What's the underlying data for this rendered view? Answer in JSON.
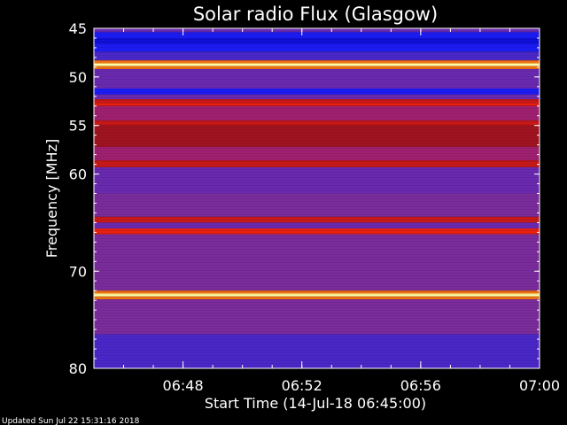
{
  "chart_data": {
    "type": "heatmap",
    "title": "Solar radio Flux (Glasgow)",
    "ylabel": "Frequency [MHz]",
    "xlabel": "Start Time (14-Jul-18 06:45:00)",
    "footer": "Updated Sun Jul 22 15:31:16 2018",
    "y_axis": {
      "range_mhz": [
        45,
        80
      ],
      "inverted": true,
      "ticks": [
        {
          "value": 45,
          "label": "45"
        },
        {
          "value": 50,
          "label": "50"
        },
        {
          "value": 55,
          "label": "55"
        },
        {
          "value": 60,
          "label": "60"
        },
        {
          "value": 70,
          "label": "70"
        },
        {
          "value": 80,
          "label": "80"
        }
      ]
    },
    "x_axis": {
      "range": [
        "06:45:00",
        "07:00:00"
      ],
      "ticks": [
        {
          "value": "06:48",
          "label": "06:48"
        },
        {
          "value": "06:52",
          "label": "06:52"
        },
        {
          "value": "06:56",
          "label": "06:56"
        },
        {
          "value": "07:00",
          "label": "07:00"
        }
      ]
    },
    "colors": {
      "background": "#000000",
      "axis": "#ffffff",
      "low": "#1a1aff",
      "mid": "#7a2aa0",
      "high": "#d81010",
      "peak": "#ffffa0"
    },
    "bands": [
      {
        "from": 45.0,
        "to": 45.4,
        "level": "purple"
      },
      {
        "from": 45.4,
        "to": 46.0,
        "level": "blue"
      },
      {
        "from": 46.0,
        "to": 46.6,
        "level": "blue-dark"
      },
      {
        "from": 46.6,
        "to": 47.4,
        "level": "blue"
      },
      {
        "from": 47.4,
        "to": 48.3,
        "level": "blue-violet"
      },
      {
        "from": 48.3,
        "to": 48.6,
        "level": "orange"
      },
      {
        "from": 48.6,
        "to": 48.9,
        "level": "peak"
      },
      {
        "from": 48.9,
        "to": 49.2,
        "level": "orange"
      },
      {
        "from": 49.2,
        "to": 51.2,
        "level": "purple"
      },
      {
        "from": 51.2,
        "to": 51.8,
        "level": "blue"
      },
      {
        "from": 51.8,
        "to": 52.3,
        "level": "purple"
      },
      {
        "from": 52.3,
        "to": 52.7,
        "level": "red"
      },
      {
        "from": 52.7,
        "to": 53.0,
        "level": "bright-red"
      },
      {
        "from": 53.0,
        "to": 54.5,
        "level": "red-purple"
      },
      {
        "from": 54.5,
        "to": 55.0,
        "level": "red"
      },
      {
        "from": 55.0,
        "to": 57.2,
        "level": "dark-red"
      },
      {
        "from": 57.2,
        "to": 58.6,
        "level": "red-purple"
      },
      {
        "from": 58.6,
        "to": 59.3,
        "level": "red"
      },
      {
        "from": 59.3,
        "to": 62.0,
        "level": "purple"
      },
      {
        "from": 62.0,
        "to": 64.4,
        "level": "violet"
      },
      {
        "from": 64.4,
        "to": 65.0,
        "level": "red"
      },
      {
        "from": 65.0,
        "to": 65.6,
        "level": "purple"
      },
      {
        "from": 65.6,
        "to": 66.2,
        "level": "bright-red"
      },
      {
        "from": 66.2,
        "to": 72.0,
        "level": "violet"
      },
      {
        "from": 72.0,
        "to": 72.3,
        "level": "orange"
      },
      {
        "from": 72.3,
        "to": 72.6,
        "level": "peak"
      },
      {
        "from": 72.6,
        "to": 72.9,
        "level": "orange"
      },
      {
        "from": 72.9,
        "to": 76.5,
        "level": "violet"
      },
      {
        "from": 76.5,
        "to": 80.0,
        "level": "blue-violet"
      }
    ]
  }
}
